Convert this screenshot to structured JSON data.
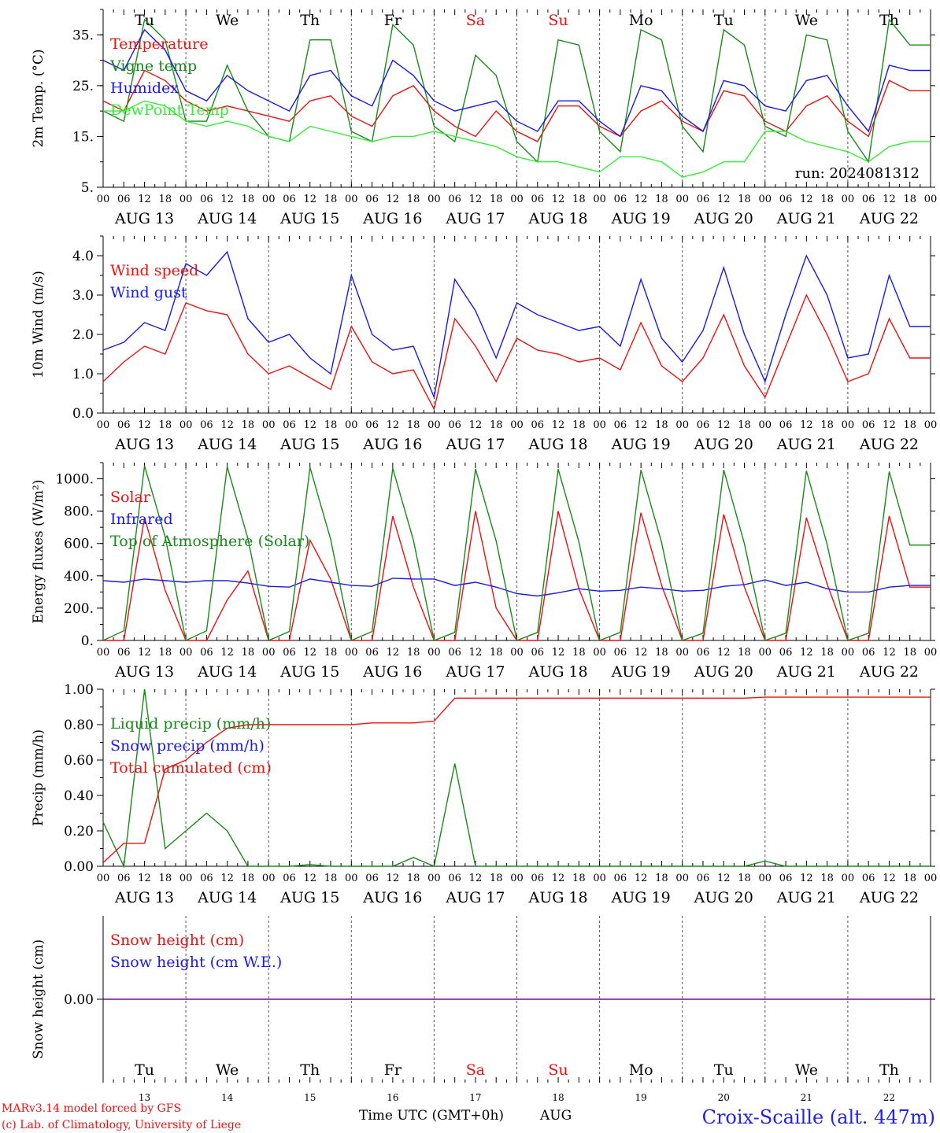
{
  "colors": {
    "red": "#ee1111",
    "green": "#1a8a1a",
    "lightgreen": "#33ee33",
    "blue": "#1a1aee",
    "axis": "#000000",
    "title": "#2222ee",
    "purple": "#8800aa"
  },
  "time_axis": {
    "hour_ticks": [
      "00",
      "06",
      "12",
      "18"
    ],
    "dates": [
      "AUG 13",
      "AUG 14",
      "AUG 15",
      "AUG 16",
      "AUG 17",
      "AUG 18",
      "AUG 19",
      "AUG 20",
      "AUG 21",
      "AUG 22"
    ],
    "weekdays": [
      "Tu",
      "We",
      "Th",
      "Fr",
      "Sa",
      "Su",
      "Mo",
      "Tu",
      "We",
      "Th"
    ],
    "weekend_flags": [
      false,
      false,
      false,
      false,
      true,
      true,
      false,
      false,
      false,
      false
    ],
    "day_numbers": [
      "13",
      "14",
      "15",
      "16",
      "17",
      "18",
      "19",
      "20",
      "21",
      "22"
    ],
    "last_tick": "00"
  },
  "footer": {
    "model_line1": "MARv3.14 model forced by GFS",
    "model_line2": "(c) Lab. of Climatology, University of Liege",
    "time_label": "Time UTC (GMT+0h)",
    "month": "AUG",
    "station": "Croix-Scaille (alt. 447m)"
  },
  "chart_data": [
    {
      "type": "line",
      "ylabel": "2m Temp. (°C)",
      "ylim": [
        5,
        40
      ],
      "yticks": [
        5,
        15,
        25,
        35
      ],
      "ytick_labels": [
        "5.",
        "15.",
        "25.",
        "35."
      ],
      "annotation": "run: 2024081312",
      "legend": [
        {
          "name": "Temperature",
          "color": "red"
        },
        {
          "name": "Vigne temp",
          "color": "green"
        },
        {
          "name": "Humidex",
          "color": "blue"
        },
        {
          "name": "DewPoint Temp",
          "color": "lightgreen"
        }
      ],
      "series": [
        {
          "name": "Temperature",
          "color": "red",
          "step": 6,
          "values": [
            22,
            20,
            28,
            26,
            22,
            20,
            21,
            20,
            19,
            18,
            22,
            23,
            19,
            17,
            23,
            25,
            20,
            17,
            15,
            20,
            16,
            14,
            21,
            21,
            17,
            15,
            20,
            22,
            18,
            16,
            24,
            23,
            18,
            16,
            21,
            23,
            18,
            15,
            26,
            24
          ]
        },
        {
          "name": "Vigne temp",
          "color": "green",
          "step": 6,
          "values": [
            20,
            18,
            38,
            34,
            18,
            18,
            29,
            20,
            15,
            14,
            34,
            34,
            16,
            14,
            37,
            33,
            17,
            14,
            31,
            27,
            14,
            10,
            34,
            33,
            16,
            12,
            36,
            34,
            17,
            12,
            36,
            33,
            17,
            15,
            35,
            34,
            16,
            10,
            38,
            33
          ]
        },
        {
          "name": "Humidex",
          "color": "blue",
          "step": 6,
          "values": [
            30,
            28,
            36,
            32,
            24,
            22,
            27,
            24,
            22,
            20,
            27,
            28,
            23,
            21,
            30,
            27,
            22,
            20,
            21,
            22,
            18,
            16,
            22,
            22,
            18,
            15,
            25,
            24,
            19,
            16,
            26,
            25,
            21,
            20,
            26,
            27,
            21,
            16,
            29,
            28
          ]
        },
        {
          "name": "DewPoint Temp",
          "color": "lightgreen",
          "step": 6,
          "values": [
            20,
            20,
            22,
            21,
            18,
            17,
            18,
            17,
            15,
            14,
            17,
            16,
            15,
            14,
            15,
            15,
            16,
            15,
            14,
            13,
            11,
            10,
            10,
            9,
            8,
            11,
            11,
            10,
            7,
            8,
            10,
            10,
            16,
            16,
            14,
            13,
            12,
            10,
            13,
            14
          ]
        }
      ]
    },
    {
      "type": "line",
      "ylabel": "10m Wind (m/s)",
      "ylim": [
        0,
        4.5
      ],
      "yticks": [
        0,
        1,
        2,
        3,
        4
      ],
      "ytick_labels": [
        "0.0",
        "1.0",
        "2.0",
        "3.0",
        "4.0"
      ],
      "legend": [
        {
          "name": "Wind speed",
          "color": "red"
        },
        {
          "name": "Wind gust",
          "color": "blue"
        }
      ],
      "series": [
        {
          "name": "Wind speed",
          "color": "red",
          "step": 6,
          "values": [
            0.8,
            1.3,
            1.7,
            1.5,
            2.8,
            2.6,
            2.5,
            1.5,
            1.0,
            1.2,
            0.9,
            0.6,
            2.2,
            1.3,
            1.0,
            1.1,
            0.1,
            2.4,
            1.7,
            0.8,
            1.9,
            1.6,
            1.5,
            1.3,
            1.4,
            1.1,
            2.3,
            1.2,
            0.8,
            1.4,
            2.5,
            1.2,
            0.4,
            1.7,
            3.0,
            2.0,
            0.8,
            1.0,
            2.4,
            1.4
          ]
        },
        {
          "name": "Wind gust",
          "color": "blue",
          "step": 6,
          "values": [
            1.6,
            1.8,
            2.3,
            2.1,
            3.8,
            3.5,
            4.1,
            2.4,
            1.8,
            2.0,
            1.4,
            1.0,
            3.5,
            2.0,
            1.6,
            1.7,
            0.4,
            3.4,
            2.6,
            1.4,
            2.8,
            2.5,
            2.3,
            2.1,
            2.2,
            1.7,
            3.4,
            1.9,
            1.3,
            2.1,
            3.7,
            2.0,
            0.8,
            2.5,
            4.0,
            3.0,
            1.4,
            1.5,
            3.5,
            2.2
          ]
        }
      ]
    },
    {
      "type": "line",
      "ylabel": "Energy fluxes (W/m²)",
      "ylim": [
        0,
        1100
      ],
      "yticks": [
        0,
        200,
        400,
        600,
        800,
        1000
      ],
      "ytick_labels": [
        "0.",
        "200.",
        "400.",
        "600.",
        "800.",
        "1000."
      ],
      "legend": [
        {
          "name": "Solar",
          "color": "red"
        },
        {
          "name": "Infrared",
          "color": "blue"
        },
        {
          "name": "Top of Atmosphere (Solar)",
          "color": "green"
        }
      ],
      "series": [
        {
          "name": "Solar",
          "color": "red",
          "step": 6,
          "values": [
            0,
            0,
            760,
            310,
            0,
            0,
            250,
            430,
            0,
            0,
            620,
            380,
            0,
            0,
            770,
            330,
            0,
            0,
            800,
            200,
            0,
            0,
            800,
            320,
            0,
            0,
            790,
            340,
            0,
            0,
            780,
            330,
            0,
            0,
            760,
            350,
            0,
            0,
            770,
            330
          ]
        },
        {
          "name": "Infrared",
          "color": "blue",
          "step": 6,
          "values": [
            370,
            360,
            380,
            370,
            360,
            370,
            370,
            355,
            335,
            330,
            380,
            360,
            340,
            335,
            385,
            380,
            380,
            340,
            360,
            330,
            290,
            275,
            295,
            320,
            305,
            310,
            330,
            320,
            305,
            310,
            335,
            345,
            375,
            340,
            360,
            320,
            300,
            300,
            330,
            340
          ]
        },
        {
          "name": "Top of Atmosphere (Solar)",
          "color": "green",
          "step": 6,
          "values": [
            0,
            60,
            1080,
            640,
            0,
            60,
            1075,
            630,
            0,
            55,
            1070,
            625,
            0,
            55,
            1065,
            620,
            0,
            50,
            1060,
            615,
            0,
            50,
            1060,
            610,
            0,
            50,
            1055,
            605,
            0,
            45,
            1055,
            600,
            0,
            45,
            1050,
            595,
            0,
            45,
            1045,
            590
          ]
        }
      ]
    },
    {
      "type": "line",
      "ylabel": "Precip (mm/h)",
      "ylim": [
        0,
        1.0
      ],
      "yticks": [
        0,
        0.2,
        0.4,
        0.6,
        0.8,
        1.0
      ],
      "ytick_labels": [
        "0.00",
        "0.20",
        "0.40",
        "0.60",
        "0.80",
        "1.00"
      ],
      "legend": [
        {
          "name": "Liquid precip (mm/h)",
          "color": "green"
        },
        {
          "name": "Snow precip (mm/h)",
          "color": "blue"
        },
        {
          "name": "Total cumulated (cm)",
          "color": "red"
        }
      ],
      "series": [
        {
          "name": "Liquid precip (mm/h)",
          "color": "green",
          "step": 6,
          "values": [
            0.25,
            0.0,
            1.0,
            0.1,
            0.2,
            0.3,
            0.2,
            0.0,
            0.0,
            0.0,
            0.01,
            0.0,
            0.0,
            0.0,
            0.0,
            0.05,
            0.0,
            0.58,
            0.0,
            0.0,
            0.0,
            0.0,
            0.0,
            0.0,
            0.0,
            0.0,
            0.0,
            0.0,
            0.0,
            0.0,
            0.0,
            0.0,
            0.03,
            0.0,
            0.0,
            0.0,
            0.0,
            0.0,
            0.0,
            0.0
          ]
        },
        {
          "name": "Total cumulated (cm)",
          "color": "red",
          "step": 6,
          "values": [
            0.02,
            0.13,
            0.13,
            0.55,
            0.6,
            0.7,
            0.78,
            0.8,
            0.8,
            0.8,
            0.8,
            0.8,
            0.8,
            0.81,
            0.81,
            0.81,
            0.82,
            0.95,
            0.95,
            0.95,
            0.95,
            0.95,
            0.95,
            0.95,
            0.95,
            0.95,
            0.95,
            0.95,
            0.95,
            0.95,
            0.95,
            0.95,
            0.955,
            0.955,
            0.955,
            0.955,
            0.955,
            0.955,
            0.955,
            0.955
          ]
        }
      ]
    },
    {
      "type": "line",
      "ylabel": "Snow height (cm)",
      "ylim": [
        -1,
        1
      ],
      "yticks": [
        0
      ],
      "ytick_labels": [
        "0.00"
      ],
      "legend": [
        {
          "name": "Snow height (cm)",
          "color": "red"
        },
        {
          "name": "Snow height (cm W.E.)",
          "color": "blue"
        }
      ],
      "series": [
        {
          "name": "Snow height (cm)",
          "color": "purple",
          "step": 240,
          "values": [
            0,
            0
          ]
        }
      ]
    }
  ]
}
